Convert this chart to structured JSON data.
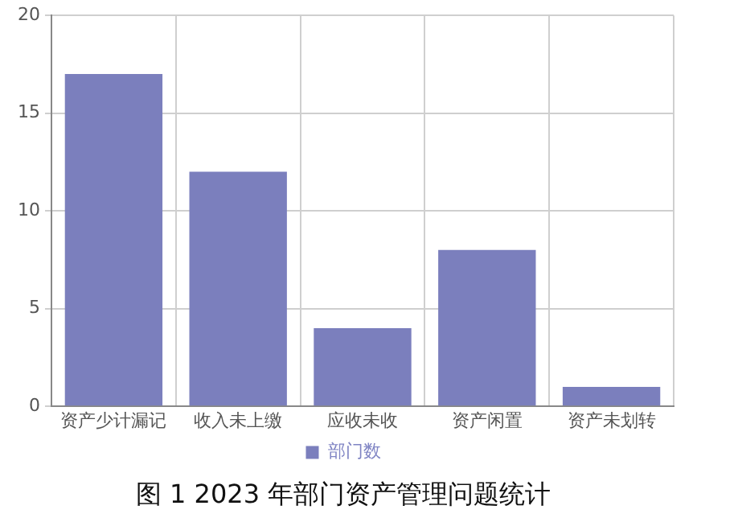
{
  "chart_data": {
    "type": "bar",
    "title": "图 1 2023 年部门资产管理问题统计",
    "categories": [
      "资产少计漏记",
      "收入未上缴",
      "应收未收",
      "资产闲置",
      "资产未划转"
    ],
    "series": [
      {
        "name": "部门数",
        "color": "#7b7fbd",
        "values": [
          17,
          12,
          4,
          8,
          1
        ]
      }
    ],
    "ylim": [
      0,
      20
    ],
    "yticks": [
      0,
      5,
      10,
      15,
      20
    ],
    "grid": true,
    "legend": "bottom"
  }
}
